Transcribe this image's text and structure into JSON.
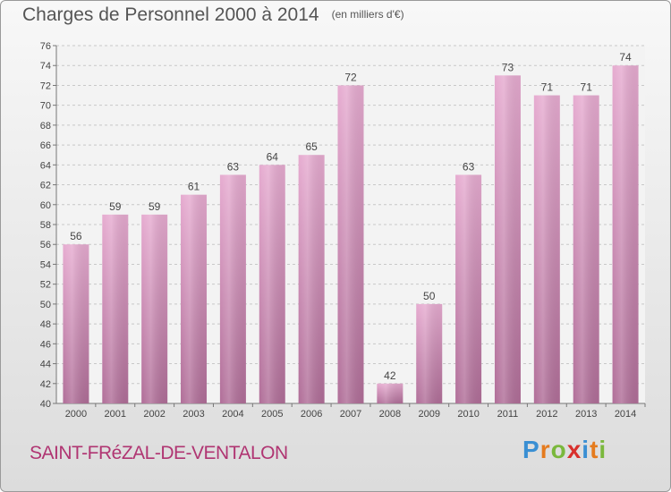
{
  "title": "Charges de Personnel 2000 à 2014",
  "subtitle": "(en milliers d'€)",
  "commune": "SAINT-FRéZAL-DE-VENTALON",
  "logo": {
    "letters": [
      "P",
      "r",
      "o",
      "x",
      "i",
      "t",
      "i"
    ],
    "colors": [
      "#3a8fd3",
      "#e57b1e",
      "#7ab83c",
      "#d8302c",
      "#3a8fd3",
      "#e57b1e",
      "#7ab83c"
    ]
  },
  "chart_data": {
    "type": "bar",
    "categories": [
      "2000",
      "2001",
      "2002",
      "2003",
      "2004",
      "2005",
      "2006",
      "2007",
      "2008",
      "2009",
      "2010",
      "2011",
      "2012",
      "2013",
      "2014"
    ],
    "values": [
      56,
      59,
      59,
      61,
      63,
      64,
      65,
      72,
      42,
      50,
      63,
      73,
      71,
      71,
      74
    ],
    "ylim": [
      40,
      76
    ],
    "yticks": [
      40,
      42,
      44,
      46,
      48,
      50,
      52,
      54,
      56,
      58,
      60,
      62,
      64,
      66,
      68,
      70,
      72,
      74,
      76
    ],
    "grid": true,
    "bar_color": "#d98ab8"
  }
}
